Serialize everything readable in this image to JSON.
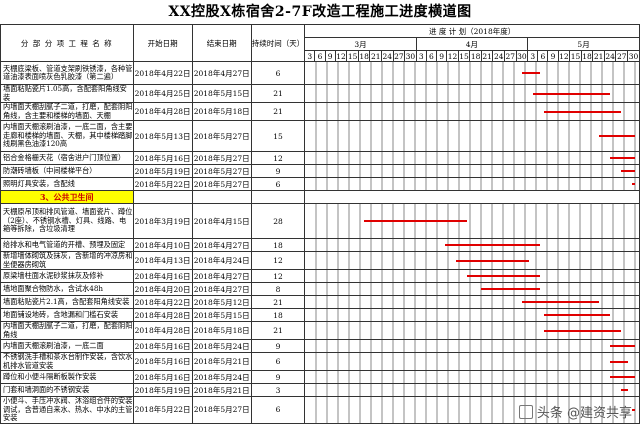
{
  "title": "XX控股X栋宿舍2-7F改造工程施工进度横道图",
  "header": {
    "sub_project": "分 部 分 项 工 程 名 称",
    "start": "开始日期",
    "end": "结束日期",
    "duration": "持续时间（天）",
    "plan": "进 度 计 划（2018年度）",
    "months": [
      "3月",
      "4月",
      "5月"
    ],
    "days": [
      "3",
      "6",
      "9",
      "12",
      "15",
      "18",
      "21",
      "24",
      "27",
      "30",
      "3",
      "6",
      "9",
      "12",
      "15",
      "18",
      "21",
      "24",
      "27",
      "30",
      "3",
      "6",
      "9",
      "12",
      "15",
      "18",
      "21",
      "24",
      "27",
      "30"
    ]
  },
  "rows": [
    {
      "name": "天棚底梁板、管道支架刷铁锈漆，各种管道油漆表面喷灰色乳胶漆（第二遍）",
      "start": "2018年4月22日",
      "end": "2018年4月27日",
      "dur": "6",
      "bar": [
        0.6556,
        0.7111
      ]
    },
    {
      "name": "墙面粘贴瓷片1.05高，含配套阳角线安装",
      "start": "2018年4月25日",
      "end": "2018年5月15日",
      "dur": "21",
      "bar": [
        0.6889,
        0.9222
      ]
    },
    {
      "name": "内墙面天棚刮腻子二道，打磨，配套阴阳角线，含主要和楼梯的墙面、天棚",
      "start": "2018年4月28日",
      "end": "2018年5月18日",
      "dur": "21",
      "bar": [
        0.7222,
        0.9556
      ]
    },
    {
      "name": "内墙面天棚滚刷油漆，一底二面，含主要走廊和楼梯的墙面、天棚，其中楼梯踏脚线刷黑色油漆120高",
      "start": "2018年5月13日",
      "end": "2018年5月27日",
      "dur": "15",
      "bar": [
        0.8889,
        1.0
      ]
    },
    {
      "name": "铝合金格栅天花（宿舍进户门顶位置）",
      "start": "2018年5月16日",
      "end": "2018年5月27日",
      "dur": "12",
      "bar": [
        0.9222,
        1.0
      ]
    },
    {
      "name": "防潮砖墙板（中间楼梯平台）",
      "start": "2018年5月19日",
      "end": "2018年5月27日",
      "dur": "9",
      "bar": [
        0.9556,
        1.0
      ]
    },
    {
      "name": "照明灯具安装，含配线",
      "start": "2018年5月22日",
      "end": "2018年5月27日",
      "dur": "6",
      "bar": [
        0.9889,
        1.0
      ]
    },
    {
      "section": "3、公共卫生间"
    },
    {
      "name": "天棚原吊顶和排风管道、墙面瓷片、蹲位（2座）、不锈钢水槽、灯具、线路、电箱等拆除，含垃圾清理",
      "start": "2018年3月19日",
      "end": "2018年4月15日",
      "dur": "28",
      "bar": [
        0.1778,
        0.4889
      ]
    },
    {
      "name": "给排水和电气管道的开槽、预埋及固定",
      "start": "2018年4月10日",
      "end": "2018年4月27日",
      "dur": "18",
      "bar": [
        0.4222,
        0.7111
      ]
    },
    {
      "name": "新增墙体砌筑及抹灰，含新增的冲凉房和坐便器房砌筑",
      "start": "2018年4月13日",
      "end": "2018年4月24日",
      "dur": "12",
      "bar": [
        0.4556,
        0.6778
      ]
    },
    {
      "name": "原梁墙柱面水泥砂浆抹灰及修补",
      "start": "2018年4月16日",
      "end": "2018年4月27日",
      "dur": "12",
      "bar": [
        0.4889,
        0.7111
      ]
    },
    {
      "name": "墙地面聚合物防水，含试水48h",
      "start": "2018年4月20日",
      "end": "2018年4月27日",
      "dur": "8",
      "bar": [
        0.5333,
        0.7111
      ]
    },
    {
      "name": "墙面粘贴瓷片2.1高，含配套阳角线安装",
      "start": "2018年4月22日",
      "end": "2018年5月12日",
      "dur": "21",
      "bar": [
        0.6556,
        0.8889
      ]
    },
    {
      "name": "地面铺设地砖，含地漏和门槛石安装",
      "start": "2018年4月28日",
      "end": "2018年5月15日",
      "dur": "18",
      "bar": [
        0.7222,
        0.9222
      ]
    },
    {
      "name": "内墙面天棚刮腻子二道，打磨，配套阴阳角线",
      "start": "2018年4月28日",
      "end": "2018年5月18日",
      "dur": "21",
      "bar": [
        0.7222,
        0.9556
      ]
    },
    {
      "name": "内墙面天棚滚刷油漆，一底二面",
      "start": "2018年5月16日",
      "end": "2018年5月24日",
      "dur": "9",
      "bar": [
        0.9222,
        1.0
      ]
    },
    {
      "name": "不锈钢洗手槽和茶水台制作安装，含饮水机排水管道安装",
      "start": "2018年5月16日",
      "end": "2018年5月21日",
      "dur": "6",
      "bar": [
        0.9222,
        0.9778
      ]
    },
    {
      "name": "蹲位和小便斗隔断板製作安装",
      "start": "2018年5月16日",
      "end": "2018年5月24日",
      "dur": "9",
      "bar": [
        0.9222,
        1.0
      ]
    },
    {
      "name": "门套和墙洞面的不锈钢安装",
      "start": "2018年5月19日",
      "end": "2018年5月21日",
      "dur": "3",
      "bar": [
        0.9556,
        0.9778
      ]
    },
    {
      "name": "小便斗、手压冲水阀、沐浴组合件的安装调试，含普通自来水、热水、中水的主管安装",
      "start": "2018年5月22日",
      "end": "2018年5月27日",
      "dur": "6",
      "bar": [
        0.9889,
        1.0
      ]
    }
  ],
  "watermark": "头条 @建资共享",
  "colors": {
    "bar": "#e00000",
    "section_bg": "#ffff00",
    "section_text": "#cc0000"
  }
}
